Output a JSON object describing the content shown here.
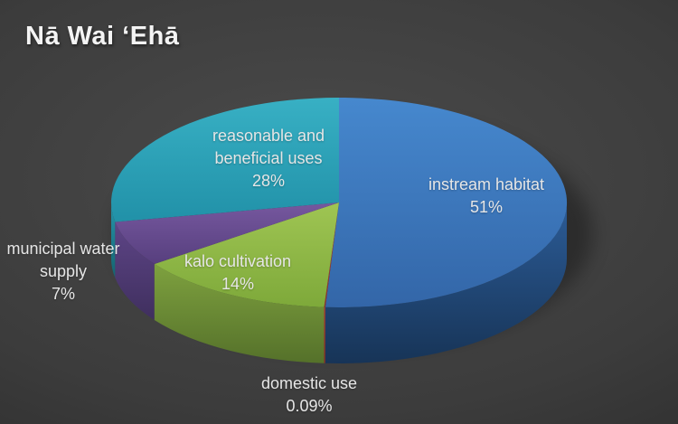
{
  "slide": {
    "title": "Nā Wai ʻEhā",
    "background_color": "#3c3c3c"
  },
  "chart_data": {
    "type": "pie",
    "style": "3d",
    "title": "Nā Wai ʻEhā",
    "legend": "none",
    "start_angle_deg": -90,
    "direction": "clockwise",
    "categories": [
      "instream habitat",
      "domestic use",
      "kalo cultivation",
      "municipal water supply",
      "reasonable and beneficial uses"
    ],
    "values": [
      51,
      0.09,
      14,
      7,
      28
    ],
    "value_labels": [
      "51%",
      "0.09%",
      "14%",
      "7%",
      "28%"
    ],
    "series_colors": [
      {
        "base": "#3b7ac0",
        "top": [
          "#4688ce",
          "#3366a8"
        ],
        "side": [
          "#2c5c97",
          "#173457"
        ]
      },
      {
        "base": "#9e3a34",
        "top": [
          "#b04a42",
          "#8e342e"
        ],
        "side": [
          "#a13c35",
          "#7c2d28"
        ]
      },
      {
        "base": "#8db940",
        "top": [
          "#9fc553",
          "#7ea93a"
        ],
        "side": [
          "#7ea13f",
          "#55712a"
        ]
      },
      {
        "base": "#6a4f96",
        "top": [
          "#76589f",
          "#573f7e"
        ],
        "side": [
          "#5e4587",
          "#3f2f5e"
        ]
      },
      {
        "base": "#2da5bd",
        "top": [
          "#38b0c4",
          "#2191a8"
        ],
        "side": [
          "#2596ac",
          "#16636f"
        ]
      }
    ]
  },
  "labels": {
    "reasonable": [
      "reasonable and",
      "beneficial uses",
      "28%"
    ],
    "instream": [
      "instream habitat",
      "51%"
    ],
    "kalo": [
      "kalo cultivation",
      "14%"
    ],
    "municipal": [
      "municipal water",
      "supply",
      "7%"
    ],
    "domestic": [
      "domestic use",
      "0.09%"
    ]
  }
}
